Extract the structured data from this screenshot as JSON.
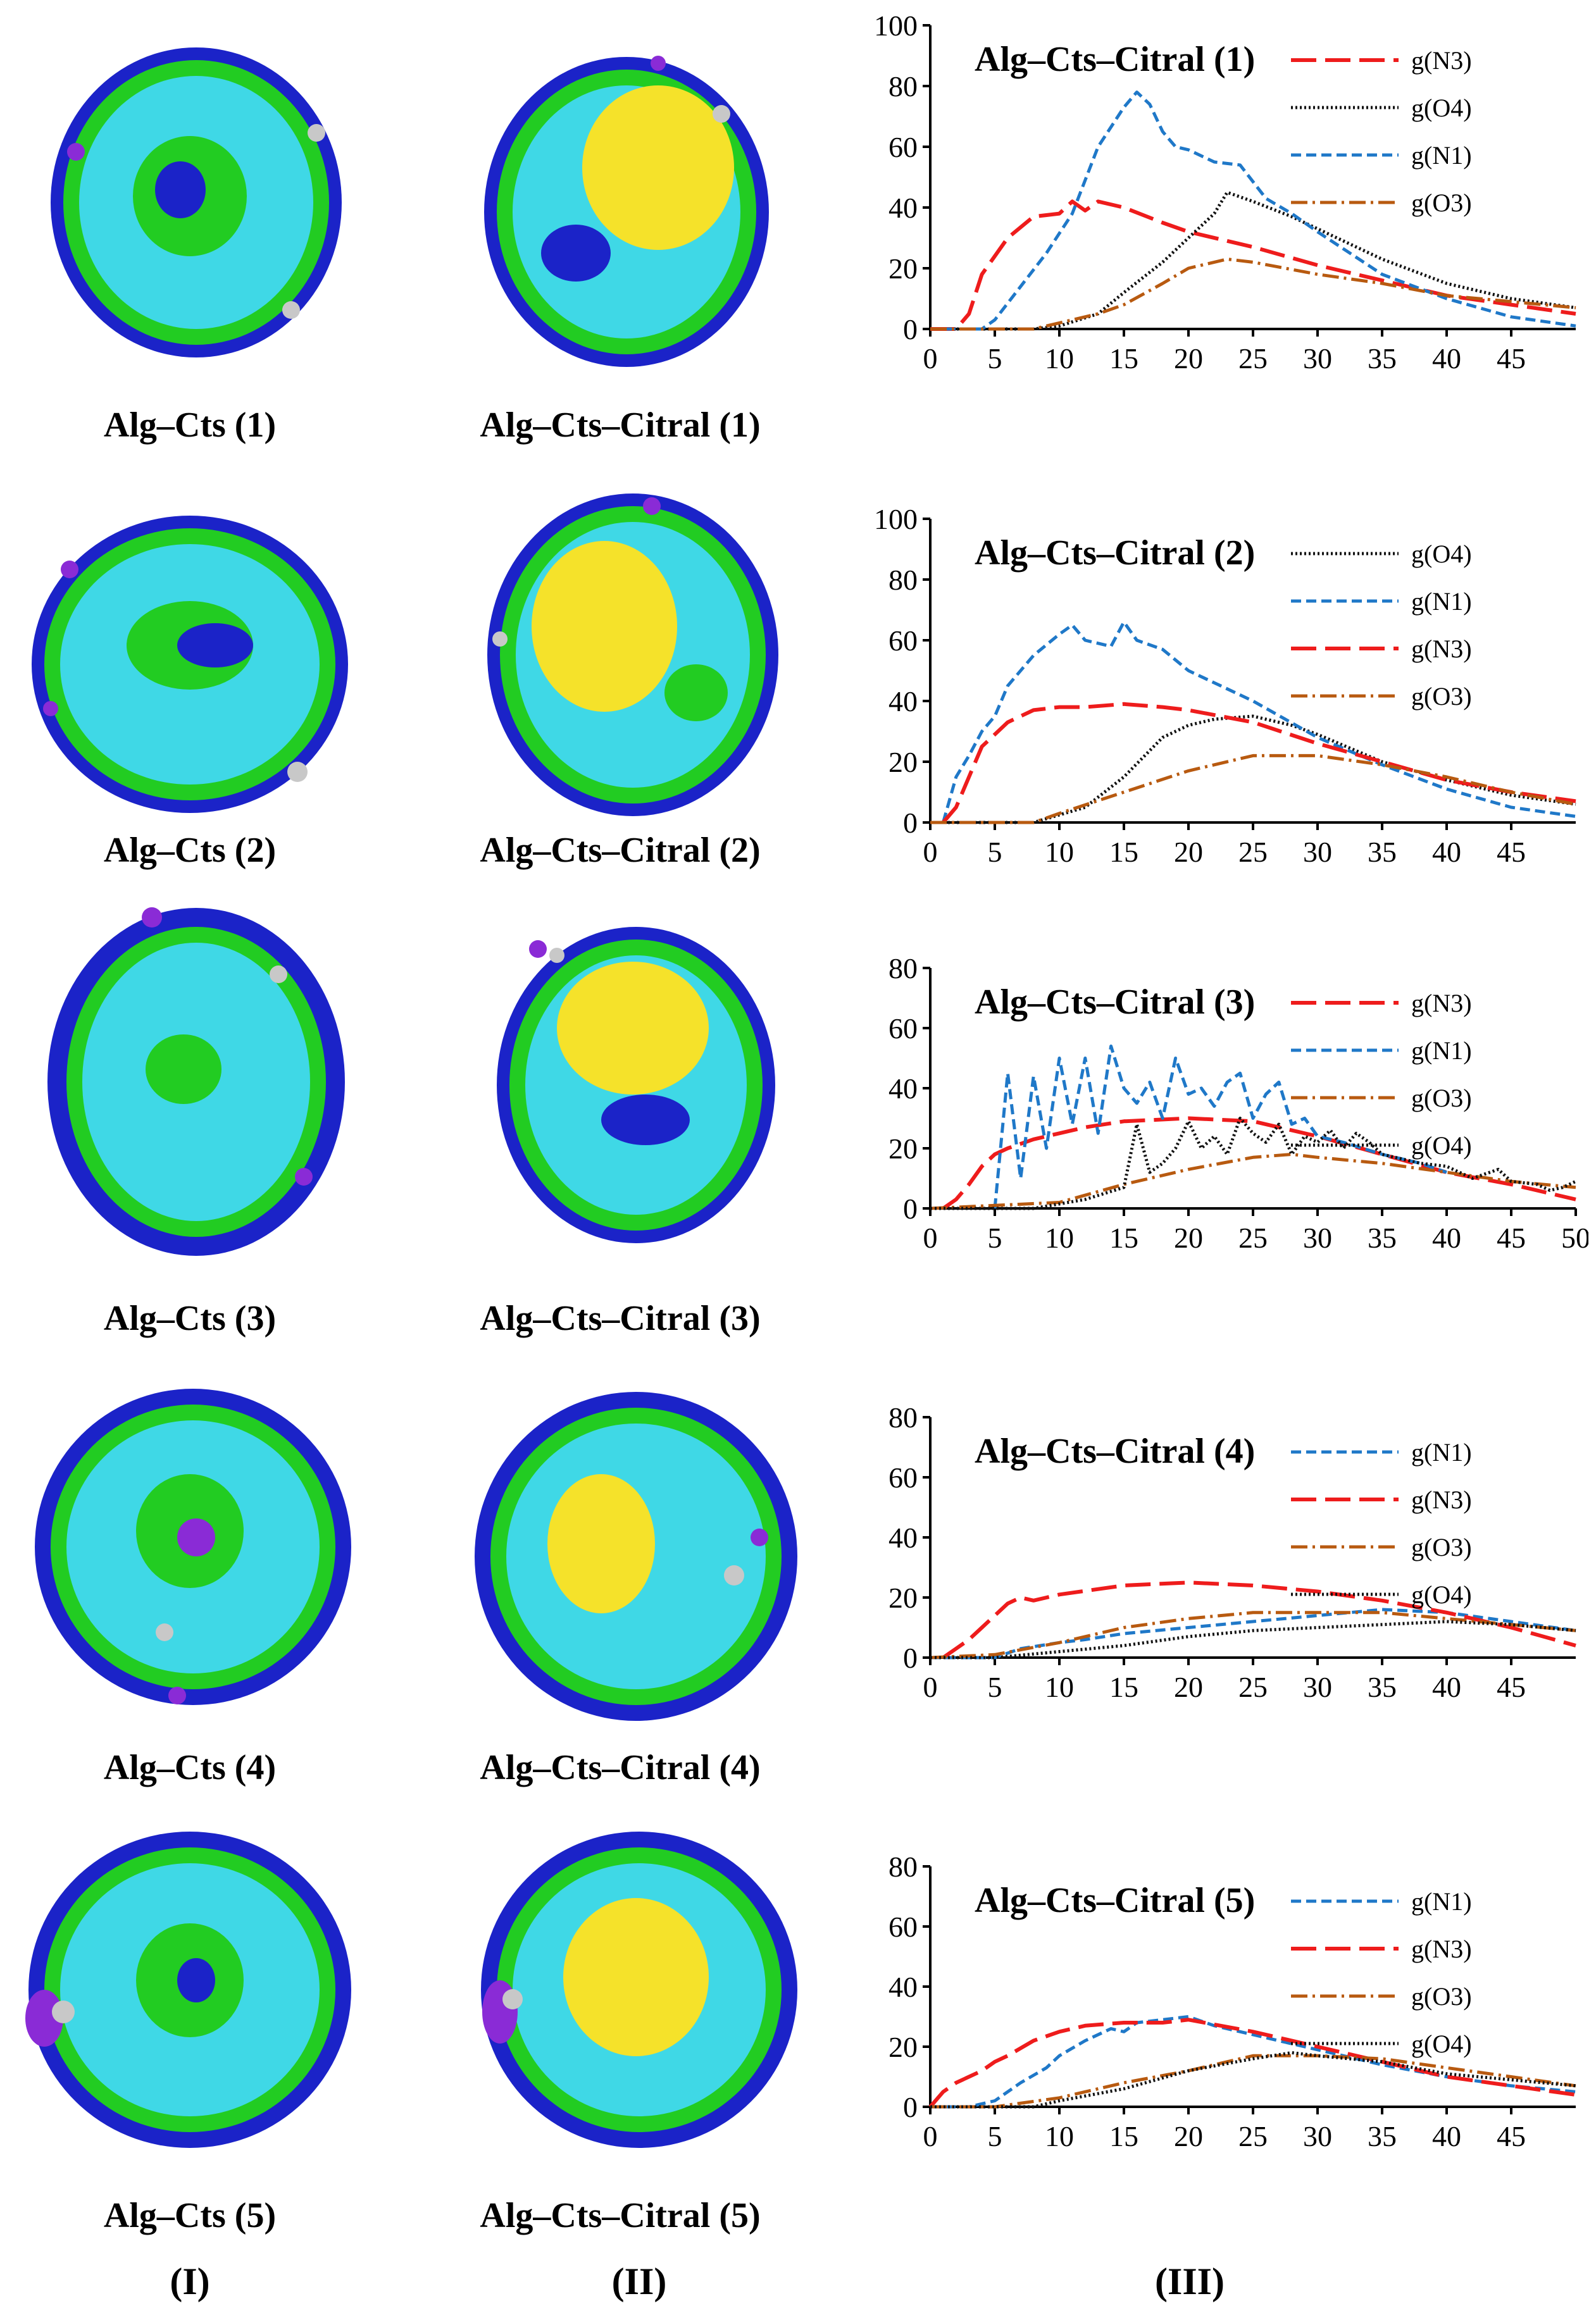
{
  "column_labels": [
    "(I)",
    "(II)",
    "(III)"
  ],
  "rows": [
    {
      "alg_caption": "Alg–Cts (1)",
      "citral_caption": "Alg–Cts–Citral (1)"
    },
    {
      "alg_caption": "Alg–Cts (2)",
      "citral_caption": "Alg–Cts–Citral (2)"
    },
    {
      "alg_caption": "Alg–Cts (3)",
      "citral_caption": "Alg–Cts–Citral (3)"
    },
    {
      "alg_caption": "Alg–Cts (4)",
      "citral_caption": "Alg–Cts–Citral (4)"
    },
    {
      "alg_caption": "Alg–Cts (5)",
      "citral_caption": "Alg–Cts–Citral (5)"
    }
  ],
  "colors": {
    "cyan": "#3fd8e6",
    "blue": "#1b23c8",
    "green": "#22cc22",
    "yellow": "#f5e22a",
    "purple": "#8a2bd6",
    "gray": "#c8c8c8",
    "n3": "#ee1c1c",
    "n1": "#1f78c8",
    "o4": "#111111",
    "o3": "#b85a10"
  },
  "chart_data": [
    {
      "type": "line",
      "title": "Alg–Cts–Citral (1)",
      "ylim": [
        0,
        100
      ],
      "yticks": [
        0,
        20,
        40,
        60,
        80,
        100
      ],
      "xlim": [
        0,
        50
      ],
      "xticks": [
        0,
        5,
        10,
        15,
        20,
        25,
        30,
        35,
        40,
        45
      ],
      "legend": [
        "g(N3)",
        "g(O4)",
        "g(N1)",
        "g(O3)"
      ],
      "series": [
        {
          "name": "g(N3)",
          "key": "n3",
          "x": [
            0,
            2,
            3,
            4,
            6,
            8,
            10,
            11,
            12,
            13,
            15,
            18,
            20,
            23,
            25,
            30,
            35,
            40,
            45,
            50
          ],
          "y": [
            0,
            0,
            5,
            18,
            30,
            37,
            38,
            42,
            39,
            42,
            40,
            35,
            32,
            29,
            27,
            21,
            16,
            11,
            8,
            5
          ]
        },
        {
          "name": "g(O4)",
          "key": "o4",
          "x": [
            0,
            8,
            10,
            13,
            15,
            18,
            20,
            22,
            23,
            25,
            28,
            30,
            35,
            40,
            45,
            50
          ],
          "y": [
            0,
            0,
            1,
            5,
            12,
            22,
            30,
            38,
            45,
            42,
            37,
            33,
            23,
            15,
            10,
            7
          ]
        },
        {
          "name": "g(N1)",
          "key": "n1",
          "x": [
            0,
            4,
            5,
            7,
            9,
            11,
            13,
            15,
            16,
            17,
            18,
            19,
            20,
            22,
            24,
            26,
            28,
            30,
            35,
            40,
            45,
            50
          ],
          "y": [
            0,
            0,
            3,
            14,
            25,
            38,
            60,
            73,
            78,
            74,
            65,
            60,
            59,
            55,
            54,
            43,
            38,
            32,
            18,
            10,
            4,
            1
          ]
        },
        {
          "name": "g(O3)",
          "key": "o3",
          "x": [
            0,
            8,
            10,
            13,
            15,
            18,
            20,
            23,
            25,
            30,
            35,
            40,
            45,
            50
          ],
          "y": [
            0,
            0,
            2,
            5,
            8,
            15,
            20,
            23,
            22,
            18,
            15,
            11,
            9,
            7
          ]
        }
      ]
    },
    {
      "type": "line",
      "title": "Alg–Cts–Citral (2)",
      "ylim": [
        0,
        100
      ],
      "yticks": [
        0,
        20,
        40,
        60,
        80,
        100
      ],
      "xlim": [
        0,
        50
      ],
      "xticks": [
        0,
        5,
        10,
        15,
        20,
        25,
        30,
        35,
        40,
        45
      ],
      "legend": [
        "g(O4)",
        "g(N1)",
        "g(N3)",
        "g(O3)"
      ],
      "series": [
        {
          "name": "g(O4)",
          "key": "o4",
          "x": [
            0,
            8,
            12,
            15,
            18,
            20,
            22,
            25,
            28,
            30,
            35,
            40,
            45,
            50
          ],
          "y": [
            0,
            0,
            5,
            15,
            28,
            32,
            34,
            35,
            32,
            29,
            20,
            14,
            9,
            6
          ]
        },
        {
          "name": "g(N1)",
          "key": "n1",
          "x": [
            1,
            2,
            3,
            4,
            5,
            6,
            8,
            10,
            11,
            12,
            14,
            15,
            16,
            18,
            20,
            25,
            30,
            35,
            40,
            45,
            50
          ],
          "y": [
            0,
            15,
            22,
            30,
            35,
            45,
            55,
            62,
            65,
            60,
            58,
            66,
            60,
            57,
            50,
            40,
            28,
            19,
            11,
            5,
            2
          ]
        },
        {
          "name": "g(N3)",
          "key": "n3",
          "x": [
            1,
            2,
            3,
            4,
            6,
            8,
            10,
            12,
            15,
            18,
            20,
            25,
            30,
            35,
            40,
            45,
            50
          ],
          "y": [
            0,
            5,
            15,
            25,
            33,
            37,
            38,
            38,
            39,
            38,
            37,
            33,
            26,
            20,
            14,
            10,
            7
          ]
        },
        {
          "name": "g(O3)",
          "key": "o3",
          "x": [
            0,
            8,
            10,
            15,
            20,
            25,
            30,
            35,
            40,
            45,
            50
          ],
          "y": [
            0,
            0,
            3,
            10,
            17,
            22,
            22,
            19,
            15,
            10,
            6
          ]
        }
      ]
    },
    {
      "type": "line",
      "title": "Alg–Cts–Citral (3)",
      "ylim": [
        0,
        80
      ],
      "yticks": [
        0,
        20,
        40,
        60,
        80
      ],
      "xlim": [
        0,
        50
      ],
      "xticks": [
        0,
        5,
        10,
        15,
        20,
        25,
        30,
        35,
        40,
        45,
        50
      ],
      "legend": [
        "g(N3)",
        "g(N1)",
        "g(O3)",
        "g(O4)"
      ],
      "series": [
        {
          "name": "g(N3)",
          "key": "n3",
          "x": [
            1,
            2,
            3,
            4,
            5,
            6,
            8,
            10,
            12,
            15,
            20,
            25,
            30,
            35,
            40,
            45,
            50
          ],
          "y": [
            0,
            3,
            8,
            14,
            18,
            20,
            23,
            25,
            27,
            29,
            30,
            29,
            24,
            18,
            12,
            8,
            3
          ]
        },
        {
          "name": "g(N1)",
          "key": "n1",
          "x": [
            5,
            6,
            7,
            8,
            9,
            10,
            11,
            12,
            13,
            14,
            15,
            16,
            17,
            18,
            19,
            20,
            21,
            22,
            23,
            24,
            25,
            26,
            27,
            28,
            29,
            30,
            32,
            35,
            38,
            40
          ],
          "y": [
            0,
            45,
            10,
            44,
            20,
            50,
            28,
            50,
            25,
            54,
            40,
            35,
            42,
            30,
            50,
            38,
            40,
            34,
            42,
            45,
            30,
            38,
            42,
            28,
            30,
            24,
            22,
            18,
            15,
            12
          ]
        },
        {
          "name": "g(O3)",
          "key": "o3",
          "x": [
            0,
            10,
            15,
            20,
            25,
            28,
            30,
            35,
            40,
            45,
            50
          ],
          "y": [
            0,
            2,
            8,
            13,
            17,
            18,
            17,
            15,
            12,
            9,
            7
          ]
        },
        {
          "name": "g(O4)",
          "key": "o4",
          "x": [
            0,
            8,
            12,
            15,
            16,
            17,
            18,
            19,
            20,
            21,
            22,
            23,
            24,
            25,
            26,
            27,
            28,
            29,
            30,
            31,
            32,
            33,
            34,
            35,
            38,
            40,
            42,
            44,
            45,
            47,
            48,
            49,
            50
          ],
          "y": [
            0,
            0,
            3,
            7,
            28,
            12,
            15,
            20,
            29,
            20,
            24,
            18,
            30,
            25,
            22,
            28,
            18,
            24,
            22,
            26,
            20,
            25,
            22,
            18,
            15,
            14,
            10,
            13,
            9,
            8,
            6,
            7,
            9
          ]
        }
      ]
    },
    {
      "type": "line",
      "title": "Alg–Cts–Citral (4)",
      "ylim": [
        0,
        80
      ],
      "yticks": [
        0,
        20,
        40,
        60,
        80
      ],
      "xlim": [
        0,
        50
      ],
      "xticks": [
        0,
        5,
        10,
        15,
        20,
        25,
        30,
        35,
        40,
        45
      ],
      "legend": [
        "g(N1)",
        "g(N3)",
        "g(O3)",
        "g(O4)"
      ],
      "series": [
        {
          "name": "g(N1)",
          "key": "n1",
          "x": [
            0,
            5,
            7,
            10,
            12,
            15,
            20,
            25,
            30,
            35,
            40,
            45,
            50
          ],
          "y": [
            0,
            0,
            3,
            5,
            6,
            8,
            10,
            12,
            14,
            16,
            15,
            12,
            9
          ]
        },
        {
          "name": "g(N3)",
          "key": "n3",
          "x": [
            1,
            2,
            3,
            4,
            5,
            6,
            7,
            8,
            10,
            15,
            20,
            25,
            30,
            35,
            40,
            45,
            50
          ],
          "y": [
            0,
            3,
            6,
            10,
            14,
            18,
            20,
            19,
            21,
            24,
            25,
            24,
            22,
            19,
            15,
            10,
            4
          ]
        },
        {
          "name": "g(O3)",
          "key": "o3",
          "x": [
            0,
            5,
            10,
            15,
            20,
            25,
            30,
            35,
            40,
            45,
            50
          ],
          "y": [
            0,
            1,
            5,
            10,
            13,
            15,
            15,
            15,
            13,
            11,
            9
          ]
        },
        {
          "name": "g(O4)",
          "key": "o4",
          "x": [
            0,
            5,
            10,
            15,
            20,
            25,
            30,
            35,
            40,
            45,
            50
          ],
          "y": [
            0,
            0,
            2,
            4,
            7,
            9,
            10,
            11,
            12,
            11,
            9
          ]
        }
      ]
    },
    {
      "type": "line",
      "title": "Alg–Cts–Citral (5)",
      "ylim": [
        0,
        80
      ],
      "yticks": [
        0,
        20,
        40,
        60,
        80
      ],
      "xlim": [
        0,
        50
      ],
      "xticks": [
        0,
        5,
        10,
        15,
        20,
        25,
        30,
        35,
        40,
        45
      ],
      "legend": [
        "g(N1)",
        "g(N3)",
        "g(O3)",
        "g(O4)"
      ],
      "series": [
        {
          "name": "g(N1)",
          "key": "n1",
          "x": [
            0,
            3,
            5,
            7,
            9,
            10,
            12,
            14,
            15,
            16,
            18,
            20,
            22,
            25,
            30,
            35,
            40,
            45,
            50
          ],
          "y": [
            0,
            0,
            2,
            8,
            13,
            17,
            22,
            26,
            25,
            28,
            29,
            30,
            27,
            24,
            19,
            14,
            10,
            7,
            5
          ]
        },
        {
          "name": "g(N3)",
          "key": "n3",
          "x": [
            0,
            1,
            2,
            3,
            4,
            5,
            6,
            8,
            10,
            12,
            15,
            18,
            20,
            25,
            30,
            35,
            40,
            45,
            50
          ],
          "y": [
            0,
            5,
            8,
            10,
            12,
            15,
            17,
            22,
            25,
            27,
            28,
            28,
            29,
            25,
            20,
            15,
            10,
            7,
            4
          ]
        },
        {
          "name": "g(O3)",
          "key": "o3",
          "x": [
            0,
            5,
            10,
            15,
            20,
            25,
            30,
            35,
            40,
            45,
            50
          ],
          "y": [
            0,
            0,
            3,
            8,
            12,
            17,
            17,
            16,
            13,
            10,
            7
          ]
        },
        {
          "name": "g(O4)",
          "key": "o4",
          "x": [
            0,
            8,
            10,
            15,
            20,
            25,
            28,
            30,
            35,
            40,
            45,
            50
          ],
          "y": [
            0,
            0,
            2,
            6,
            12,
            16,
            18,
            17,
            15,
            11,
            9,
            7
          ]
        }
      ]
    }
  ]
}
